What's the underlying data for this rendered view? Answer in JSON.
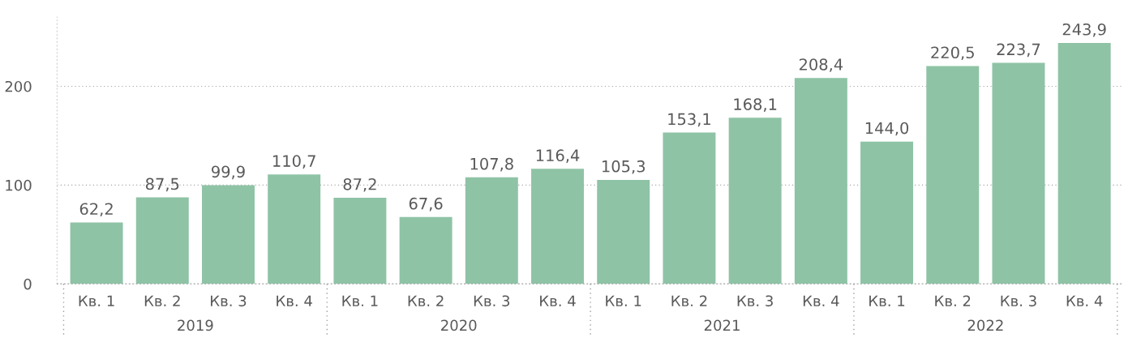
{
  "chart_data": {
    "type": "bar",
    "categories": [
      "Кв. 1",
      "Кв. 2",
      "Кв. 3",
      "Кв. 4",
      "Кв. 1",
      "Кв. 2",
      "Кв. 3",
      "Кв. 4",
      "Кв. 1",
      "Кв. 2",
      "Кв. 3",
      "Кв. 4",
      "Кв. 1",
      "Кв. 2",
      "Кв. 3",
      "Кв. 4"
    ],
    "values": [
      62.2,
      87.5,
      99.9,
      110.7,
      87.2,
      67.6,
      107.8,
      116.4,
      105.3,
      153.1,
      168.1,
      208.4,
      144.0,
      220.5,
      223.7,
      243.9
    ],
    "value_labels": [
      "62,2",
      "87,5",
      "99,9",
      "110,7",
      "87,2",
      "67,6",
      "107,8",
      "116,4",
      "105,3",
      "153,1",
      "168,1",
      "208,4",
      "144,0",
      "220,5",
      "223,7",
      "243,9"
    ],
    "color": "#8fc3a6",
    "ylim": [
      0,
      270
    ],
    "yticks": [
      0,
      100,
      200
    ],
    "grid": "y",
    "annotations": [
      "2019",
      "2020",
      "2021",
      "2022"
    ]
  }
}
